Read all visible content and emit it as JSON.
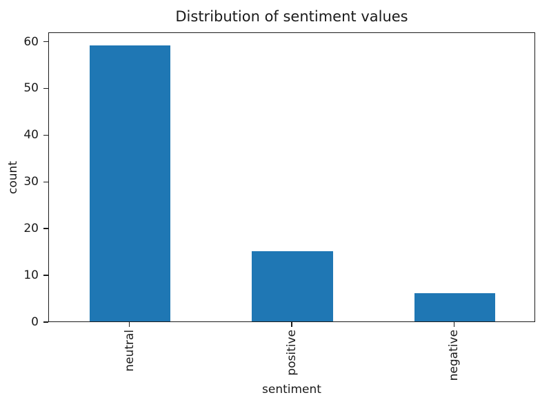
{
  "chart_data": {
    "type": "bar",
    "title": "Distribution of sentiment values",
    "xlabel": "sentiment",
    "ylabel": "count",
    "categories": [
      "neutral",
      "positive",
      "negative"
    ],
    "values": [
      59,
      15,
      6
    ],
    "yticks": [
      0,
      10,
      20,
      30,
      40,
      50,
      60
    ],
    "ylim": [
      0,
      62
    ],
    "x_tick_rotation": 90,
    "grid": false,
    "legend": "none",
    "bar_color": "#1f77b4",
    "bar_width_fraction": 0.5,
    "background_color": "#ffffff",
    "text_color": "#1a1a1a",
    "spine_color": "#1a1a1a"
  }
}
